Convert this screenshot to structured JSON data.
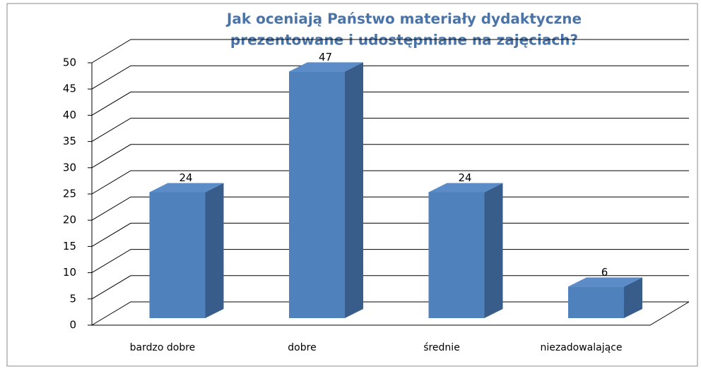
{
  "chart_data": {
    "type": "bar3d",
    "title": [
      "Jak oceniają Państwo materiały dydaktyczne",
      "prezentowane i udostępniane na zajęciach?"
    ],
    "categories": [
      "bardzo dobre",
      "dobre",
      "średnie",
      "niezadowalające"
    ],
    "values": [
      24,
      47,
      24,
      6
    ],
    "color": "#4f81bd",
    "ylim": [
      0,
      50
    ],
    "yticks": [
      0,
      5,
      10,
      15,
      20,
      25,
      30,
      35,
      40,
      45,
      50
    ],
    "grid": true
  }
}
